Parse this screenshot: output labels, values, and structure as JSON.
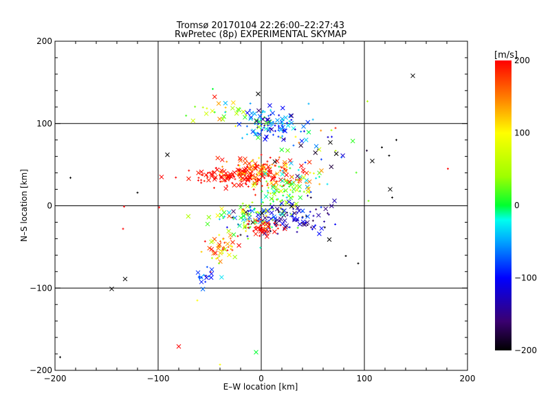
{
  "chart_data": {
    "type": "scatter",
    "title": "Tromsø 20170104 22:26:00–22:27:43",
    "subtitle": "RwPretec (8p) EXPERIMENTAL SKYMAP",
    "xlabel": "E–W location [km]",
    "ylabel": "N–S location [km]",
    "xlim": [
      -200,
      200
    ],
    "ylim": [
      -200,
      200
    ],
    "xticks": [
      -200,
      -100,
      0,
      100,
      200
    ],
    "yticks": [
      -200,
      -100,
      0,
      100,
      200
    ],
    "grid": true,
    "colorbar": {
      "unit": "[m/s]",
      "min": -200,
      "max": 200,
      "ticks": [
        200,
        100,
        0,
        -100,
        -200
      ]
    },
    "clusters": [
      {
        "cx": 0,
        "cy": 42,
        "sx": 20,
        "sy": 9,
        "n": 160,
        "v": 175,
        "vs": 45
      },
      {
        "cx": -35,
        "cy": 35,
        "sx": 20,
        "sy": 5,
        "n": 90,
        "v": 195,
        "vs": 10
      },
      {
        "cx": 8,
        "cy": 100,
        "sx": 16,
        "sy": 10,
        "n": 110,
        "v": -70,
        "vs": 45
      },
      {
        "cx": 20,
        "cy": 15,
        "sx": 12,
        "sy": 10,
        "n": 60,
        "v": 20,
        "vs": 40
      },
      {
        "cx": 25,
        "cy": -15,
        "sx": 25,
        "sy": 10,
        "n": 120,
        "v": -130,
        "vs": 45
      },
      {
        "cx": -15,
        "cy": -15,
        "sx": 20,
        "sy": 10,
        "n": 70,
        "v": 30,
        "vs": 60
      },
      {
        "cx": 2,
        "cy": -27,
        "sx": 8,
        "sy": 5,
        "n": 40,
        "v": 200,
        "vs": 10
      },
      {
        "cx": -38,
        "cy": -50,
        "sx": 8,
        "sy": 8,
        "n": 50,
        "v": 140,
        "vs": 60
      },
      {
        "cx": -55,
        "cy": -85,
        "sx": 8,
        "sy": 5,
        "n": 18,
        "v": -80,
        "vs": 30
      },
      {
        "cx": -40,
        "cy": 115,
        "sx": 20,
        "sy": 8,
        "n": 25,
        "v": 30,
        "vs": 80
      },
      {
        "cx": 45,
        "cy": 80,
        "sx": 25,
        "sy": 15,
        "n": 40,
        "v": -50,
        "vs": 100
      },
      {
        "cx": 40,
        "cy": 30,
        "sx": 15,
        "sy": 15,
        "n": 40,
        "v": 50,
        "vs": 100
      }
    ],
    "scattered_points": [
      {
        "x": 147,
        "y": 158,
        "v": -200,
        "m": "x"
      },
      {
        "x": -3,
        "y": 136,
        "v": -200,
        "m": "x"
      },
      {
        "x": -91,
        "y": 62,
        "v": -200,
        "m": "x"
      },
      {
        "x": 125,
        "y": 20,
        "v": -200,
        "m": "x"
      },
      {
        "x": -145,
        "y": -101,
        "v": -200,
        "m": "x"
      },
      {
        "x": -132,
        "y": -89,
        "v": -200,
        "m": "x"
      },
      {
        "x": 66,
        "y": -41,
        "v": -200,
        "m": "x"
      },
      {
        "x": 67,
        "y": 77,
        "v": -200,
        "m": "x"
      },
      {
        "x": -80,
        "y": -171,
        "v": 200,
        "m": "x"
      },
      {
        "x": -5,
        "y": -178,
        "v": 0,
        "m": "x"
      },
      {
        "x": -185,
        "y": 34,
        "v": -200,
        "m": "+"
      },
      {
        "x": -120,
        "y": 16,
        "v": -200,
        "m": "+"
      },
      {
        "x": -133,
        "y": -1,
        "v": 200,
        "m": "+"
      },
      {
        "x": -134,
        "y": -28,
        "v": 200,
        "m": "+"
      },
      {
        "x": -99,
        "y": -2,
        "v": 200,
        "m": "+"
      },
      {
        "x": 117,
        "y": 71,
        "v": -200,
        "m": "+"
      },
      {
        "x": 131,
        "y": 80,
        "v": -200,
        "m": "+"
      },
      {
        "x": 124,
        "y": 61,
        "v": -200,
        "m": "+"
      },
      {
        "x": 103,
        "y": 127,
        "v": 50,
        "m": "+"
      },
      {
        "x": 181,
        "y": 45,
        "v": 200,
        "m": "+"
      },
      {
        "x": 82,
        "y": -61,
        "v": -200,
        "m": "+"
      },
      {
        "x": 94,
        "y": -70,
        "v": -200,
        "m": "+"
      },
      {
        "x": -195,
        "y": -184,
        "v": -200,
        "m": "+"
      },
      {
        "x": -62,
        "y": -115,
        "v": 100,
        "m": "+"
      },
      {
        "x": -40,
        "y": -193,
        "v": 100,
        "m": "+"
      },
      {
        "x": -47,
        "y": 142,
        "v": 0,
        "m": "+"
      },
      {
        "x": 104,
        "y": 6,
        "v": 30,
        "m": "+"
      },
      {
        "x": 127,
        "y": 10,
        "v": -200,
        "m": "+"
      }
    ]
  }
}
